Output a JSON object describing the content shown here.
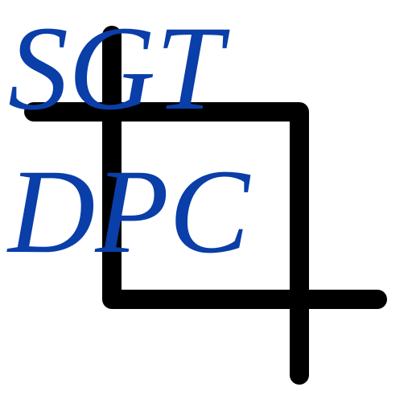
{
  "logo": {
    "line_1": "SGT",
    "line_2": "DPC",
    "text_color": "#0a3ea8"
  },
  "icon": {
    "name": "crop-icon",
    "stroke_color": "#000000"
  },
  "background_color": "#ffffff"
}
